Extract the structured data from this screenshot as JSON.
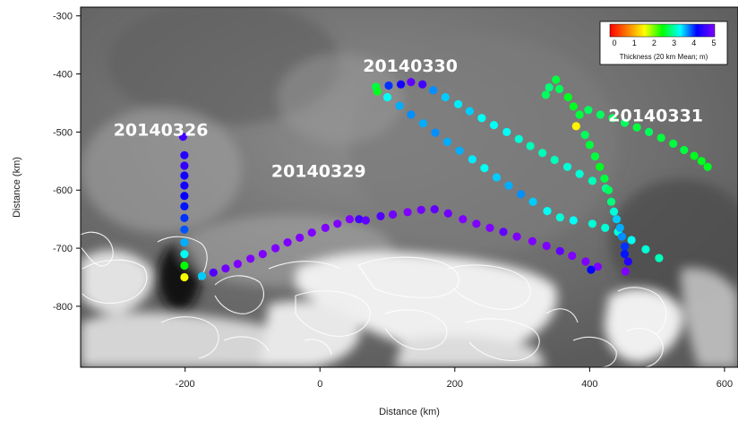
{
  "chart_data": {
    "type": "scatter",
    "title": "",
    "xlabel": "Distance (km)",
    "ylabel": "Distance (km)",
    "xlim": [
      -355,
      620
    ],
    "ylim": [
      -905,
      -285
    ],
    "xticks": [
      -200,
      0,
      200,
      400,
      600
    ],
    "yticks": [
      -300,
      -400,
      -500,
      -600,
      -700,
      -800
    ],
    "xtick_labels": [
      "-200",
      "0",
      "200",
      "400",
      "600"
    ],
    "ytick_labels": [
      "-300",
      "-400",
      "-500",
      "-600",
      "-700",
      "-800"
    ],
    "background": "grayscale sea-ice imagery with white coastline outlines",
    "colorbar": {
      "title": "Thickness (20 km Mean; m)",
      "min": 0,
      "max": 5,
      "ticks": [
        "0",
        "1",
        "2",
        "3",
        "4",
        "5"
      ],
      "colors": [
        "#ff0000",
        "#ff7f00",
        "#ffff00",
        "#00ff00",
        "#00ffff",
        "#0000ff",
        "#7f00ff"
      ],
      "placement": "top-right"
    },
    "series": [
      {
        "name": "20140326",
        "points": [
          [
            -203,
            -508,
            4.6
          ],
          [
            -201,
            -540,
            4.4
          ],
          [
            -201,
            -558,
            4.5
          ],
          [
            -201,
            -575,
            4.3
          ],
          [
            -201,
            -592,
            4.3
          ],
          [
            -201,
            -610,
            4.2
          ],
          [
            -201,
            -628,
            4.1
          ],
          [
            -201,
            -648,
            4.0
          ],
          [
            -201,
            -668,
            3.9
          ],
          [
            -201,
            -690,
            3.6
          ],
          [
            -201,
            -710,
            3.3
          ],
          [
            -201,
            -730,
            2.5
          ],
          [
            -201,
            -750,
            1.7
          ]
        ]
      },
      {
        "name": "20140329",
        "points": [
          [
            -175,
            -748,
            3.5
          ],
          [
            -158,
            -742,
            4.7
          ],
          [
            -140,
            -735,
            4.9
          ],
          [
            -122,
            -727,
            5.0
          ],
          [
            -103,
            -718,
            5.0
          ],
          [
            -85,
            -710,
            5.0
          ],
          [
            -66,
            -700,
            5.0
          ],
          [
            -48,
            -690,
            5.0
          ],
          [
            -30,
            -682,
            5.0
          ],
          [
            -12,
            -673,
            5.0
          ],
          [
            8,
            -665,
            5.0
          ],
          [
            26,
            -658,
            5.0
          ],
          [
            44,
            -650,
            5.0
          ],
          [
            58,
            -650,
            4.6
          ],
          [
            68,
            -652,
            4.8
          ],
          [
            90,
            -645,
            4.7
          ],
          [
            108,
            -642,
            4.9
          ],
          [
            130,
            -638,
            5.0
          ],
          [
            150,
            -634,
            4.9
          ],
          [
            170,
            -633,
            4.8
          ],
          [
            190,
            -640,
            4.9
          ],
          [
            212,
            -650,
            5.0
          ],
          [
            232,
            -658,
            5.0
          ],
          [
            252,
            -665,
            5.0
          ],
          [
            272,
            -672,
            4.8
          ],
          [
            292,
            -680,
            5.0
          ],
          [
            315,
            -688,
            5.0
          ],
          [
            336,
            -696,
            5.0
          ],
          [
            356,
            -705,
            4.8
          ],
          [
            374,
            -713,
            5.0
          ],
          [
            394,
            -723,
            5.0
          ],
          [
            412,
            -732,
            5.0
          ],
          [
            402,
            -737,
            4.2
          ],
          [
            453,
            -740,
            5.0
          ]
        ]
      },
      {
        "name": "20140330",
        "points": [
          [
            83,
            -422,
            2.7
          ],
          [
            85,
            -430,
            2.6
          ],
          [
            102,
            -420,
            4.0
          ],
          [
            120,
            -418,
            4.3
          ],
          [
            135,
            -414,
            4.8
          ],
          [
            152,
            -418,
            4.6
          ],
          [
            168,
            -428,
            3.7
          ],
          [
            186,
            -440,
            3.5
          ],
          [
            205,
            -452,
            3.4
          ],
          [
            222,
            -464,
            3.5
          ],
          [
            240,
            -476,
            3.3
          ],
          [
            258,
            -488,
            3.3
          ],
          [
            277,
            -500,
            3.3
          ],
          [
            295,
            -512,
            3.2
          ],
          [
            312,
            -524,
            3.1
          ],
          [
            330,
            -536,
            3.1
          ],
          [
            348,
            -548,
            3.1
          ],
          [
            367,
            -560,
            3.2
          ],
          [
            385,
            -572,
            3.2
          ],
          [
            404,
            -584,
            3.1
          ],
          [
            424,
            -597,
            3.0
          ],
          [
            100,
            -440,
            3.3
          ],
          [
            118,
            -455,
            3.6
          ],
          [
            135,
            -470,
            3.7
          ],
          [
            153,
            -485,
            3.6
          ],
          [
            171,
            -501,
            3.7
          ],
          [
            189,
            -517,
            3.6
          ],
          [
            207,
            -532,
            3.6
          ],
          [
            226,
            -547,
            3.4
          ],
          [
            244,
            -562,
            3.3
          ],
          [
            262,
            -578,
            3.5
          ],
          [
            280,
            -592,
            3.6
          ],
          [
            298,
            -607,
            3.7
          ],
          [
            316,
            -620,
            3.5
          ],
          [
            337,
            -636,
            3.3
          ],
          [
            356,
            -647,
            3.2
          ],
          [
            376,
            -652,
            3.3
          ],
          [
            404,
            -658,
            3.2
          ],
          [
            423,
            -665,
            3.2
          ],
          [
            442,
            -672,
            3.2
          ],
          [
            462,
            -686,
            3.3
          ],
          [
            483,
            -702,
            3.2
          ],
          [
            503,
            -717,
            3.1
          ]
        ]
      },
      {
        "name": "20140331",
        "points": [
          [
            335,
            -436,
            2.8
          ],
          [
            340,
            -423,
            2.9
          ],
          [
            350,
            -410,
            2.7
          ],
          [
            355,
            -426,
            2.8
          ],
          [
            368,
            -440,
            2.6
          ],
          [
            376,
            -456,
            2.6
          ],
          [
            380,
            -490,
            1.6
          ],
          [
            385,
            -470,
            2.7
          ],
          [
            393,
            -505,
            2.8
          ],
          [
            400,
            -522,
            2.7
          ],
          [
            408,
            -542,
            2.7
          ],
          [
            415,
            -560,
            2.6
          ],
          [
            422,
            -580,
            2.7
          ],
          [
            428,
            -600,
            2.8
          ],
          [
            432,
            -620,
            2.9
          ],
          [
            436,
            -637,
            3.2
          ],
          [
            440,
            -650,
            3.5
          ],
          [
            445,
            -665,
            3.6
          ],
          [
            448,
            -680,
            3.7
          ],
          [
            452,
            -697,
            4.0
          ],
          [
            452,
            -710,
            4.1
          ],
          [
            457,
            -723,
            4.4
          ],
          [
            398,
            -462,
            2.8
          ],
          [
            416,
            -470,
            2.8
          ],
          [
            434,
            -476,
            2.8
          ],
          [
            452,
            -484,
            2.8
          ],
          [
            470,
            -492,
            2.7
          ],
          [
            488,
            -500,
            2.8
          ],
          [
            506,
            -510,
            2.7
          ],
          [
            524,
            -520,
            2.7
          ],
          [
            540,
            -531,
            2.7
          ],
          [
            555,
            -541,
            2.6
          ],
          [
            566,
            -550,
            2.6
          ],
          [
            575,
            -560,
            2.6
          ]
        ]
      }
    ],
    "annotations": [
      {
        "text": "20140326",
        "x": -236,
        "y": -506
      },
      {
        "text": "20140330",
        "x": 134,
        "y": -396
      },
      {
        "text": "20140329",
        "x": -2,
        "y": -577
      },
      {
        "text": "20140331",
        "x": 498,
        "y": -482
      }
    ]
  }
}
